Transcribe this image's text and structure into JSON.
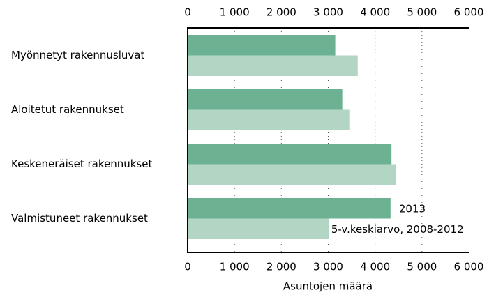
{
  "chart_data": {
    "type": "hbar",
    "x_label": "Asuntojen määrä",
    "categories": [
      "Myönnetyt rakennusluvat",
      "Aloitetut rakennukset",
      "Keskeneräiset rakennukset",
      "Valmistuneet rakennukset"
    ],
    "series": [
      {
        "name": "2013",
        "color": "#6db193",
        "values": [
          3150,
          3300,
          4350,
          4330
        ]
      },
      {
        "name": "5-v.keskiarvo, 2008-2012",
        "color": "#b3d6c4",
        "values": [
          3630,
          3450,
          4440,
          3020
        ]
      }
    ],
    "xlim": [
      0,
      6000
    ],
    "xticks": [
      0,
      {
        "value": 1000,
        "label": "1 000"
      },
      {
        "value": 2000,
        "label": "2 000"
      },
      {
        "value": 3000,
        "label": "3 000"
      },
      {
        "value": 4000,
        "label": "4 000"
      },
      {
        "value": 5000,
        "label": "5 000"
      },
      {
        "value": 6000,
        "label": "6 000"
      }
    ],
    "grid": true
  }
}
